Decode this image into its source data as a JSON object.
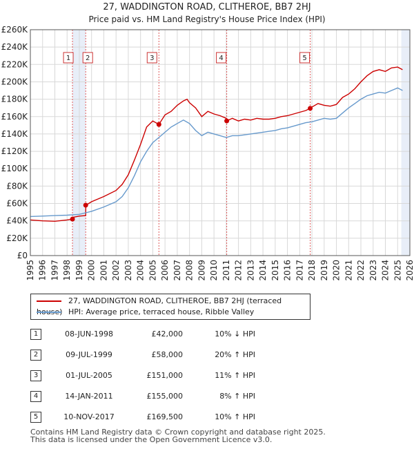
{
  "title": "27, WADDINGTON ROAD, CLITHEROE, BB7 2HJ",
  "subtitle": "Price paid vs. HM Land Registry's House Price Index (HPI)",
  "chart_data": {
    "type": "line",
    "xlim": [
      1995,
      2026
    ],
    "ylim": [
      0,
      260000
    ],
    "x_ticks": [
      1995,
      1996,
      1997,
      1998,
      1999,
      2000,
      2001,
      2002,
      2003,
      2004,
      2005,
      2006,
      2007,
      2008,
      2009,
      2010,
      2011,
      2012,
      2013,
      2014,
      2015,
      2016,
      2017,
      2018,
      2019,
      2020,
      2021,
      2022,
      2023,
      2024,
      2025,
      2026
    ],
    "y_ticks": [
      0,
      20000,
      40000,
      60000,
      80000,
      100000,
      120000,
      140000,
      160000,
      180000,
      200000,
      220000,
      240000,
      260000
    ],
    "y_tick_labels": [
      "£0",
      "£20K",
      "£40K",
      "£60K",
      "£80K",
      "£100K",
      "£120K",
      "£140K",
      "£160K",
      "£180K",
      "£200K",
      "£220K",
      "£240K",
      "£260K"
    ],
    "grid": true,
    "series": [
      {
        "name": "27, WADDINGTON ROAD, CLITHEROE, BB7 2HJ (terraced house)",
        "color": "#cc0000",
        "x": [
          1995,
          1996,
          1997,
          1998,
          1998.44,
          1998.45,
          1999,
          1999.52,
          1999.53,
          2000,
          2001,
          2002,
          2002.5,
          2003,
          2003.5,
          2004,
          2004.5,
          2005,
          2005.5,
          2006,
          2006.5,
          2007,
          2007.5,
          2007.8,
          2008,
          2008.5,
          2009,
          2009.5,
          2010,
          2010.5,
          2011,
          2011.04,
          2011.5,
          2012,
          2012.5,
          2013,
          2013.5,
          2014,
          2014.5,
          2015,
          2015.5,
          2016,
          2016.5,
          2017,
          2017.5,
          2017.86,
          2018,
          2018.5,
          2019,
          2019.5,
          2020,
          2020.5,
          2021,
          2021.5,
          2022,
          2022.5,
          2023,
          2023.5,
          2024,
          2024.5,
          2025,
          2025.4
        ],
        "y": [
          41000,
          40000,
          39500,
          41000,
          42000,
          44000,
          45500,
          46000,
          58000,
          62000,
          68000,
          75000,
          82000,
          93000,
          110000,
          128000,
          148000,
          155000,
          151000,
          162000,
          166000,
          173000,
          178000,
          180000,
          176000,
          170000,
          160000,
          166000,
          163000,
          161000,
          158000,
          155000,
          158000,
          155000,
          157000,
          156000,
          158000,
          157000,
          157000,
          158000,
          160000,
          161000,
          163000,
          165000,
          167000,
          169500,
          171000,
          175000,
          173000,
          172000,
          174000,
          182000,
          186000,
          192000,
          200000,
          207000,
          212000,
          214000,
          212000,
          216000,
          217000,
          214000
        ]
      },
      {
        "name": "HPI: Average price, terraced house, Ribble Valley",
        "color": "#6699cc",
        "x": [
          1995,
          1996,
          1997,
          1998,
          1999,
          2000,
          2001,
          2002,
          2002.5,
          2003,
          2003.5,
          2004,
          2004.5,
          2005,
          2005.5,
          2006,
          2006.5,
          2007,
          2007.5,
          2008,
          2008.5,
          2009,
          2009.5,
          2010,
          2010.5,
          2011,
          2011.5,
          2012,
          2012.5,
          2013,
          2013.5,
          2014,
          2014.5,
          2015,
          2015.5,
          2016,
          2016.5,
          2017,
          2017.5,
          2018,
          2018.5,
          2019,
          2019.5,
          2020,
          2020.5,
          2021,
          2021.5,
          2022,
          2022.5,
          2023,
          2023.5,
          2024,
          2024.5,
          2025,
          2025.4
        ],
        "y": [
          45000,
          45500,
          46000,
          46500,
          47500,
          51000,
          56000,
          62000,
          68000,
          78000,
          92000,
          108000,
          120000,
          130000,
          136000,
          142000,
          148000,
          152000,
          156000,
          152000,
          144000,
          138000,
          142000,
          140000,
          138000,
          136000,
          138000,
          138000,
          139000,
          140000,
          141000,
          142000,
          143000,
          144000,
          146000,
          147000,
          149000,
          151000,
          153000,
          154000,
          156000,
          158000,
          157000,
          158000,
          164000,
          170000,
          175000,
          180000,
          184000,
          186000,
          188000,
          187000,
          190000,
          193000,
          190000
        ]
      }
    ],
    "sales": [
      {
        "label": "1",
        "date": 1998.44,
        "price": 42000
      },
      {
        "label": "2",
        "date": 1999.52,
        "price": 58000
      },
      {
        "label": "3",
        "date": 2005.5,
        "price": 151000
      },
      {
        "label": "4",
        "date": 2011.04,
        "price": 155000
      },
      {
        "label": "5",
        "date": 2017.86,
        "price": 169500
      }
    ],
    "shaded_periods": [
      [
        1998.44,
        1999.52
      ],
      [
        2025.3,
        2026
      ]
    ]
  },
  "legend": {
    "red_label": "27, WADDINGTON ROAD, CLITHEROE, BB7 2HJ (terraced house)",
    "blue_label": "HPI: Average price, terraced house, Ribble Valley"
  },
  "transactions": [
    {
      "num": "1",
      "date": "08-JUN-1998",
      "price": "£42,000",
      "hpi": "10% ↓ HPI"
    },
    {
      "num": "2",
      "date": "09-JUL-1999",
      "price": "£58,000",
      "hpi": "20% ↑ HPI"
    },
    {
      "num": "3",
      "date": "01-JUL-2005",
      "price": "£151,000",
      "hpi": "11% ↑ HPI"
    },
    {
      "num": "4",
      "date": "14-JAN-2011",
      "price": "£155,000",
      "hpi": "8% ↑ HPI"
    },
    {
      "num": "5",
      "date": "10-NOV-2017",
      "price": "£169,500",
      "hpi": "10% ↑ HPI"
    }
  ],
  "footer": {
    "line1": "Contains HM Land Registry data © Crown copyright and database right 2025.",
    "line2": "This data is licensed under the Open Government Licence v3.0."
  }
}
